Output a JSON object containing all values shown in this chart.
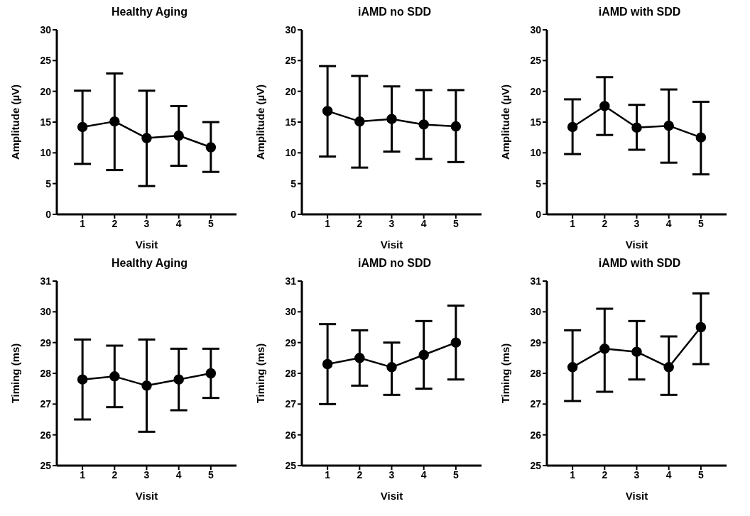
{
  "chart_data": [
    {
      "type": "line",
      "title": "Healthy Aging",
      "xlabel": "Visit",
      "ylabel": "Amplitude (µV)",
      "categories": [
        "1",
        "2",
        "3",
        "4",
        "5"
      ],
      "ylim": [
        0,
        30
      ],
      "yticks": [
        0,
        5,
        10,
        15,
        20,
        25,
        30
      ],
      "marker": "circle",
      "line_style": "solid",
      "grid": false,
      "legend": false,
      "series": [
        {
          "color": "#000000",
          "values": [
            14.2,
            15.1,
            12.4,
            12.8,
            10.9
          ],
          "errors": [
            [
              8.2,
              20.1
            ],
            [
              7.2,
              22.9
            ],
            [
              4.6,
              20.1
            ],
            [
              7.9,
              17.6
            ],
            [
              6.9,
              15.0
            ]
          ]
        }
      ]
    },
    {
      "type": "line",
      "title": "iAMD no SDD",
      "xlabel": "Visit",
      "ylabel": "Amplitude (µV)",
      "categories": [
        "1",
        "2",
        "3",
        "4",
        "5"
      ],
      "ylim": [
        0,
        30
      ],
      "yticks": [
        0,
        5,
        10,
        15,
        20,
        25,
        30
      ],
      "marker": "circle",
      "line_style": "solid",
      "grid": false,
      "legend": false,
      "series": [
        {
          "color": "#000000",
          "values": [
            16.8,
            15.1,
            15.5,
            14.6,
            14.3
          ],
          "errors": [
            [
              9.4,
              24.1
            ],
            [
              7.6,
              22.5
            ],
            [
              10.2,
              20.8
            ],
            [
              9.0,
              20.2
            ],
            [
              8.5,
              20.2
            ]
          ]
        }
      ]
    },
    {
      "type": "line",
      "title": "iAMD with SDD",
      "xlabel": "Visit",
      "ylabel": "Amplitude (µV)",
      "categories": [
        "1",
        "2",
        "3",
        "4",
        "5"
      ],
      "ylim": [
        0,
        30
      ],
      "yticks": [
        0,
        5,
        10,
        15,
        20,
        25,
        30
      ],
      "marker": "circle",
      "line_style": "solid",
      "grid": false,
      "legend": false,
      "series": [
        {
          "color": "#000000",
          "values": [
            14.2,
            17.6,
            14.1,
            14.4,
            12.5
          ],
          "errors": [
            [
              9.8,
              18.7
            ],
            [
              12.9,
              22.3
            ],
            [
              10.5,
              17.8
            ],
            [
              8.4,
              20.3
            ],
            [
              6.5,
              18.3
            ]
          ]
        }
      ]
    },
    {
      "type": "line",
      "title": "Healthy Aging",
      "xlabel": "Visit",
      "ylabel": "Timing (ms)",
      "categories": [
        "1",
        "2",
        "3",
        "4",
        "5"
      ],
      "ylim": [
        25,
        31
      ],
      "yticks": [
        25,
        26,
        27,
        28,
        29,
        30,
        31
      ],
      "marker": "circle",
      "line_style": "solid",
      "grid": false,
      "legend": false,
      "series": [
        {
          "color": "#000000",
          "values": [
            27.8,
            27.9,
            27.6,
            27.8,
            28.0
          ],
          "errors": [
            [
              26.5,
              29.1
            ],
            [
              26.9,
              28.9
            ],
            [
              26.1,
              29.1
            ],
            [
              26.8,
              28.8
            ],
            [
              27.2,
              28.8
            ]
          ]
        }
      ]
    },
    {
      "type": "line",
      "title": "iAMD no SDD",
      "xlabel": "Visit",
      "ylabel": "Timing (ms)",
      "categories": [
        "1",
        "2",
        "3",
        "4",
        "5"
      ],
      "ylim": [
        25,
        31
      ],
      "yticks": [
        25,
        26,
        27,
        28,
        29,
        30,
        31
      ],
      "marker": "circle",
      "line_style": "solid",
      "grid": false,
      "legend": false,
      "series": [
        {
          "color": "#000000",
          "values": [
            28.3,
            28.5,
            28.2,
            28.6,
            29.0
          ],
          "errors": [
            [
              27.0,
              29.6
            ],
            [
              27.6,
              29.4
            ],
            [
              27.3,
              29.0
            ],
            [
              27.5,
              29.7
            ],
            [
              27.8,
              30.2
            ]
          ]
        }
      ]
    },
    {
      "type": "line",
      "title": "iAMD with SDD",
      "xlabel": "Visit",
      "ylabel": "Timing (ms)",
      "categories": [
        "1",
        "2",
        "3",
        "4",
        "5"
      ],
      "ylim": [
        25,
        31
      ],
      "yticks": [
        25,
        26,
        27,
        28,
        29,
        30,
        31
      ],
      "marker": "circle",
      "line_style": "solid",
      "grid": false,
      "legend": false,
      "series": [
        {
          "color": "#000000",
          "values": [
            28.2,
            28.8,
            28.7,
            28.2,
            29.5
          ],
          "errors": [
            [
              27.1,
              29.4
            ],
            [
              27.4,
              30.1
            ],
            [
              27.8,
              29.7
            ],
            [
              27.3,
              29.2
            ],
            [
              28.3,
              30.6
            ]
          ]
        }
      ]
    }
  ]
}
